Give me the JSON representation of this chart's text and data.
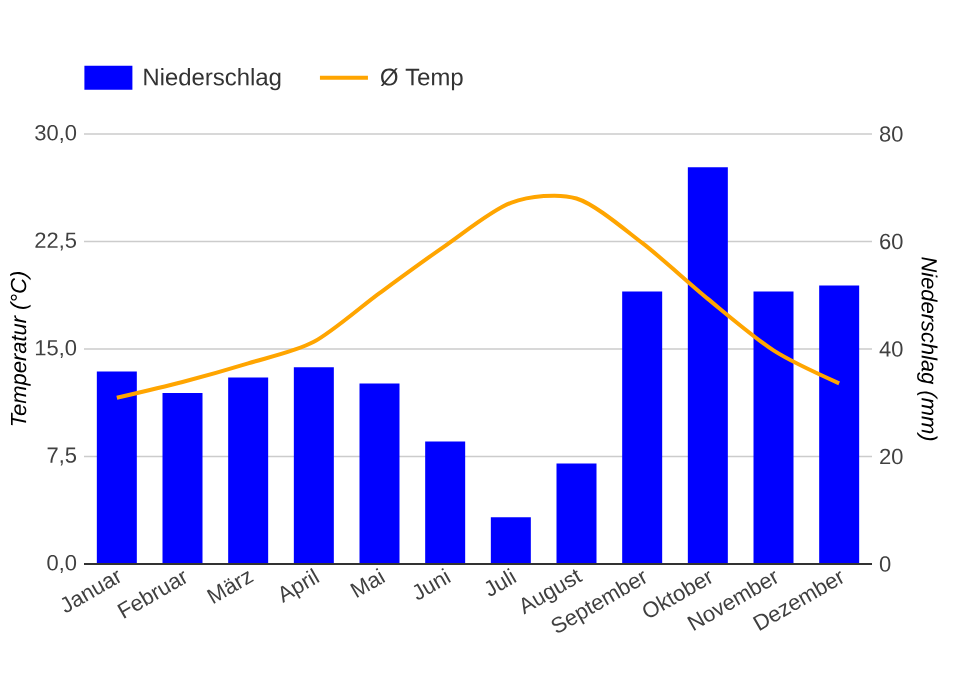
{
  "chart_data": {
    "type": "bar",
    "categories": [
      "Januar",
      "Februar",
      "März",
      "April",
      "Mai",
      "Juni",
      "Juli",
      "August",
      "September",
      "Oktober",
      "November",
      "Dezember"
    ],
    "series": [
      {
        "name": "Niederschlag",
        "axis": "y2",
        "color": "#0000ff",
        "values": [
          35.8,
          31.8,
          34.7,
          36.6,
          33.6,
          22.8,
          8.7,
          18.7,
          50.7,
          73.8,
          50.7,
          51.8
        ]
      },
      {
        "name": "Ø Temp",
        "type": "line",
        "axis": "y",
        "color": "#ffa500",
        "values": [
          11.6,
          12.7,
          14.0,
          15.5,
          18.9,
          22.2,
          25.2,
          25.5,
          22.4,
          18.5,
          14.9,
          12.6
        ]
      }
    ],
    "ylabel": "Temperatur (°C)",
    "y2label": "Niederschlag (mm)",
    "ylim": [
      0,
      30
    ],
    "yticks": [
      {
        "value": 0,
        "label": "0,0"
      },
      {
        "value": 7.5,
        "label": "7,5"
      },
      {
        "value": 15,
        "label": "15,0"
      },
      {
        "value": 22.5,
        "label": "22,5"
      },
      {
        "value": 30,
        "label": "30,0"
      }
    ],
    "y2lim": [
      0,
      80
    ],
    "y2ticks": [
      0,
      20,
      40,
      60,
      80
    ],
    "grid": "y",
    "legend": "top left",
    "marker": "none",
    "line_style": "solid"
  }
}
